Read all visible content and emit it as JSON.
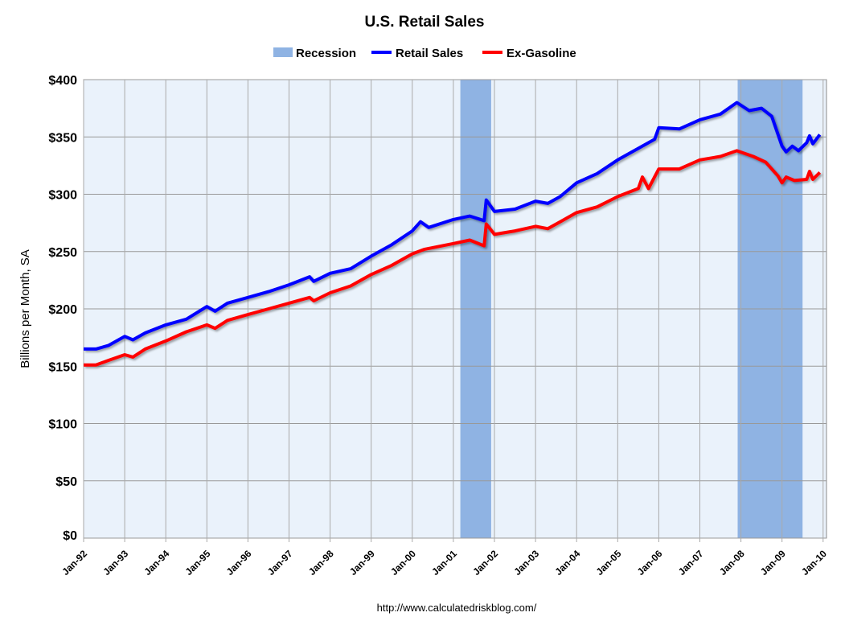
{
  "chart_data": {
    "type": "line",
    "title": "U.S. Retail Sales",
    "ylabel": "Billions per Month, SA",
    "xlabel": "",
    "source": "http://www.calculatedriskblog.com/",
    "ylim": [
      0,
      400
    ],
    "xlim": [
      1992,
      2010.1
    ],
    "yticks": [
      0,
      50,
      100,
      150,
      200,
      250,
      300,
      350,
      400
    ],
    "ytick_labels": [
      "$0",
      "$50",
      "$100",
      "$150",
      "$200",
      "$250",
      "$300",
      "$350",
      "$400"
    ],
    "xticks": [
      1992,
      1993,
      1994,
      1995,
      1996,
      1997,
      1998,
      1999,
      2000,
      2001,
      2002,
      2003,
      2004,
      2005,
      2006,
      2007,
      2008,
      2009,
      2010
    ],
    "xtick_labels": [
      "Jan-92",
      "Jan-93",
      "Jan-94",
      "Jan-95",
      "Jan-96",
      "Jan-97",
      "Jan-98",
      "Jan-99",
      "Jan-00",
      "Jan-01",
      "Jan-02",
      "Jan-03",
      "Jan-04",
      "Jan-05",
      "Jan-06",
      "Jan-07",
      "Jan-08",
      "Jan-09",
      "Jan-10"
    ],
    "grid": true,
    "legend_position": "top-center",
    "legend": [
      "Recession",
      "Retail Sales",
      "Ex-Gasoline"
    ],
    "recessions": [
      [
        2001.17,
        2001.92
      ],
      [
        2007.92,
        2009.5
      ]
    ],
    "colors": {
      "recession": "#8fb3e3",
      "retail": "#0000ff",
      "exgas": "#ff0000"
    },
    "series": [
      {
        "name": "Retail Sales",
        "x": [
          1992,
          1992.3,
          1992.6,
          1993,
          1993.2,
          1993.5,
          1994,
          1994.5,
          1995,
          1995.2,
          1995.5,
          1996,
          1996.5,
          1997,
          1997.5,
          1997.6,
          1998,
          1998.5,
          1999,
          1999.5,
          2000,
          2000.2,
          2000.4,
          2001,
          2001.4,
          2001.75,
          2001.8,
          2002,
          2002.5,
          2003,
          2003.3,
          2003.6,
          2004,
          2004.5,
          2005,
          2005.5,
          2005.9,
          2006,
          2006.5,
          2007,
          2007.5,
          2007.9,
          2008.2,
          2008.5,
          2008.75,
          2009,
          2009.1,
          2009.25,
          2009.4,
          2009.6,
          2009.67,
          2009.75,
          2009.92
        ],
        "y": [
          165,
          165,
          168,
          176,
          173,
          179,
          186,
          191,
          202,
          198,
          205,
          210,
          215,
          221,
          228,
          224,
          231,
          235,
          246,
          256,
          268,
          276,
          271,
          278,
          281,
          277,
          295,
          285,
          287,
          294,
          292,
          298,
          310,
          318,
          330,
          340,
          348,
          358,
          357,
          365,
          370,
          380,
          373,
          375,
          368,
          342,
          337,
          342,
          338,
          345,
          351,
          344,
          352
        ]
      },
      {
        "name": "Ex-Gasoline",
        "x": [
          1992,
          1992.3,
          1992.6,
          1993,
          1993.2,
          1993.5,
          1994,
          1994.5,
          1995,
          1995.2,
          1995.5,
          1996,
          1996.5,
          1997,
          1997.5,
          1997.6,
          1998,
          1998.5,
          1999,
          1999.5,
          2000,
          2000.3,
          2001,
          2001.4,
          2001.75,
          2001.8,
          2002,
          2002.5,
          2003,
          2003.3,
          2003.6,
          2004,
          2004.5,
          2005,
          2005.5,
          2005.6,
          2005.75,
          2006,
          2006.5,
          2007,
          2007.5,
          2007.9,
          2008.3,
          2008.6,
          2008.9,
          2009,
          2009.1,
          2009.3,
          2009.6,
          2009.67,
          2009.75,
          2009.92
        ],
        "y": [
          151,
          151,
          155,
          160,
          158,
          165,
          172,
          180,
          186,
          183,
          190,
          195,
          200,
          205,
          210,
          207,
          214,
          220,
          230,
          238,
          248,
          252,
          257,
          260,
          255,
          274,
          265,
          268,
          272,
          270,
          276,
          284,
          289,
          298,
          305,
          315,
          305,
          322,
          322,
          330,
          333,
          338,
          333,
          328,
          316,
          310,
          315,
          312,
          313,
          320,
          313,
          319
        ]
      }
    ]
  }
}
